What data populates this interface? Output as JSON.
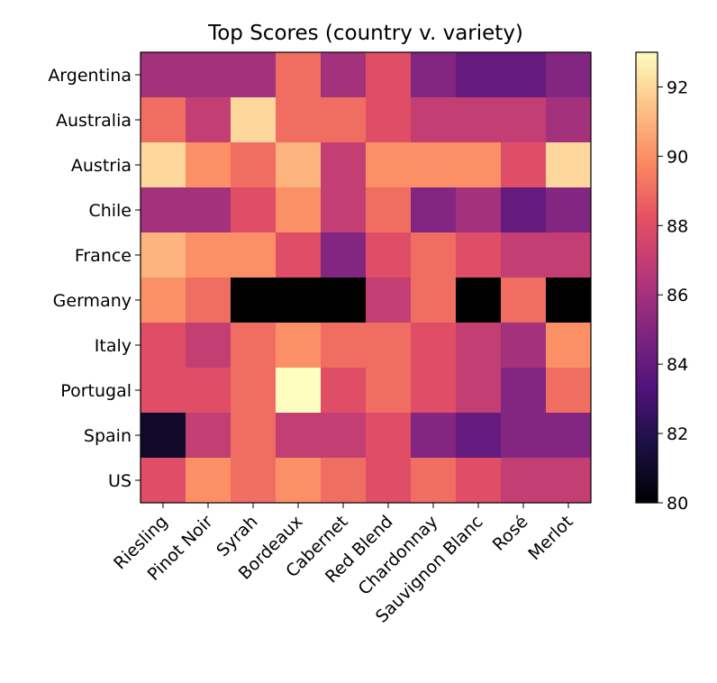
{
  "chart_data": {
    "type": "heatmap",
    "title": "Top Scores (country v. variety)",
    "x_categories": [
      "Riesling",
      "Pinot Noir",
      "Syrah",
      "Bordeaux",
      "Cabernet",
      "Red Blend",
      "Chardonnay",
      "Sauvignon Blanc",
      "Rosé",
      "Merlot"
    ],
    "y_categories": [
      "Argentina",
      "Australia",
      "Austria",
      "Chile",
      "France",
      "Germany",
      "Italy",
      "Portugal",
      "Spain",
      "US"
    ],
    "values": [
      [
        86,
        86,
        86,
        89,
        86,
        88,
        85,
        84,
        84,
        85
      ],
      [
        89,
        87,
        92,
        89,
        89,
        88,
        87,
        87,
        87,
        86
      ],
      [
        92,
        90,
        89,
        91,
        87,
        90,
        90,
        90,
        88,
        92
      ],
      [
        86,
        86,
        88,
        90,
        87,
        89,
        85,
        86,
        84,
        85
      ],
      [
        91,
        90,
        90,
        88,
        85,
        88,
        89,
        88,
        87,
        87
      ],
      [
        90,
        89,
        null,
        null,
        null,
        87,
        89,
        null,
        89,
        null
      ],
      [
        88,
        87,
        89,
        90,
        89,
        89,
        88,
        87,
        86,
        90
      ],
      [
        88,
        88,
        89,
        93,
        88,
        89,
        88,
        87,
        85,
        89
      ],
      [
        81,
        87,
        89,
        87,
        87,
        88,
        85,
        84,
        85,
        85
      ],
      [
        88,
        90,
        89,
        90,
        89,
        88,
        89,
        88,
        87,
        87
      ]
    ],
    "colormap": "magma",
    "colorbar": {
      "vmin": 80,
      "vmax": 93,
      "ticks": [
        80,
        82,
        84,
        86,
        88,
        90,
        92
      ]
    },
    "missing_color": "#000000"
  }
}
